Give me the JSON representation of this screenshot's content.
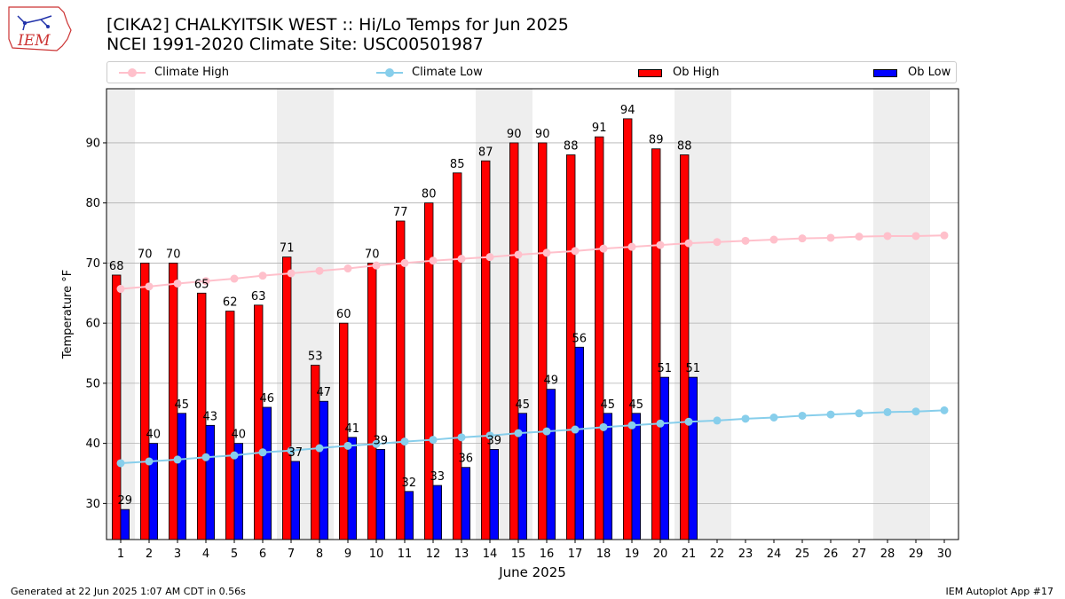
{
  "header": {
    "title_line1": "[CIKA2] CHALKYITSIK WEST :: Hi/Lo Temps for Jun 2025",
    "title_line2": "NCEI 1991-2020 Climate Site: USC00501987",
    "logo_text": "IEM"
  },
  "footer": {
    "left": "Generated at 22 Jun 2025 1:07 AM CDT in 0.56s",
    "right": "IEM Autoplot App #17"
  },
  "legend": {
    "climate_high": "Climate High",
    "climate_low": "Climate Low",
    "ob_high": "Ob High",
    "ob_low": "Ob Low"
  },
  "chart_data": {
    "type": "bar",
    "xlabel": "June 2025",
    "ylabel": "Temperature °F",
    "xlim": [
      0.5,
      30.5
    ],
    "ylim": [
      24,
      99
    ],
    "yticks": [
      30,
      40,
      50,
      60,
      70,
      80,
      90
    ],
    "grid": "horizontal",
    "legend_position": "top",
    "weekend_shading": [
      [
        1,
        1
      ],
      [
        7,
        8
      ],
      [
        14,
        15
      ],
      [
        21,
        22
      ],
      [
        28,
        29
      ]
    ],
    "colors": {
      "ob_high": "#ff0000",
      "ob_low": "#0000ff",
      "climate_high": "#ffc0cb",
      "climate_low": "#87ceeb",
      "weekend": "#eeeeee",
      "grid": "#b0b0b0"
    },
    "days": [
      1,
      2,
      3,
      4,
      5,
      6,
      7,
      8,
      9,
      10,
      11,
      12,
      13,
      14,
      15,
      16,
      17,
      18,
      19,
      20,
      21,
      22,
      23,
      24,
      25,
      26,
      27,
      28,
      29,
      30
    ],
    "series": [
      {
        "name": "Ob High",
        "values": [
          68,
          70,
          70,
          65,
          62,
          63,
          71,
          53,
          60,
          70,
          77,
          80,
          85,
          87,
          90,
          90,
          88,
          91,
          94,
          89,
          88
        ]
      },
      {
        "name": "Ob Low",
        "values": [
          29,
          40,
          45,
          43,
          40,
          46,
          37,
          47,
          41,
          39,
          32,
          33,
          36,
          39,
          45,
          49,
          56,
          45,
          45,
          51,
          51
        ]
      },
      {
        "name": "Climate High",
        "values": [
          65.7,
          66.1,
          66.6,
          67.0,
          67.4,
          67.9,
          68.3,
          68.7,
          69.1,
          69.6,
          70.0,
          70.4,
          70.7,
          71.0,
          71.4,
          71.7,
          72.0,
          72.4,
          72.7,
          73.0,
          73.3,
          73.5,
          73.7,
          73.9,
          74.1,
          74.2,
          74.4,
          74.5,
          74.5,
          74.6
        ]
      },
      {
        "name": "Climate Low",
        "values": [
          36.7,
          37.0,
          37.3,
          37.7,
          38.0,
          38.5,
          38.8,
          39.2,
          39.6,
          39.9,
          40.3,
          40.6,
          41.0,
          41.3,
          41.7,
          42.0,
          42.3,
          42.7,
          43.0,
          43.3,
          43.6,
          43.8,
          44.1,
          44.3,
          44.6,
          44.8,
          45.0,
          45.2,
          45.3,
          45.5
        ]
      }
    ]
  }
}
